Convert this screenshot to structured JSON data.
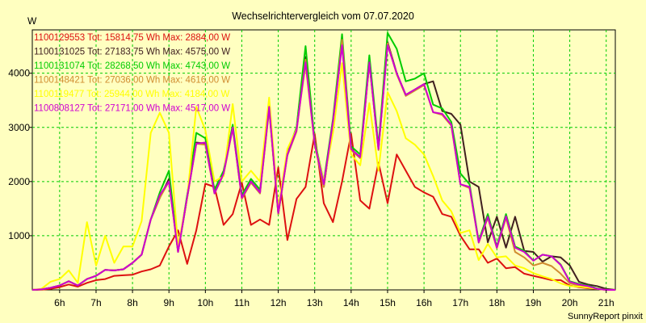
{
  "chart_data": {
    "type": "line",
    "title": "Wechselrichtervergleich vom 07.07.2020",
    "ylabel": "W",
    "footer": "SunnyReport pinxit",
    "x_ticks": [
      "6h",
      "7h",
      "8h",
      "9h",
      "10h",
      "11h",
      "12h",
      "13h",
      "14h",
      "15h",
      "16h",
      "17h",
      "18h",
      "19h",
      "20h",
      "21h"
    ],
    "y_ticks": [
      1000,
      2000,
      3000,
      4000
    ],
    "xlim": [
      5.25,
      21.25
    ],
    "ylim": [
      0,
      4800
    ],
    "grid": true,
    "legend_position": "top-left",
    "series": [
      {
        "name": "1100129553",
        "label": "1100129553 Tot: 15814,75 Wh Max: 2884,00 W",
        "color": "#dd1010",
        "x": [
          5.25,
          5.5,
          5.75,
          6.0,
          6.25,
          6.5,
          6.75,
          7.0,
          7.25,
          7.5,
          7.75,
          8.0,
          8.25,
          8.5,
          8.75,
          9.0,
          9.25,
          9.5,
          9.75,
          10.0,
          10.25,
          10.5,
          10.75,
          11.0,
          11.25,
          11.5,
          11.75,
          12.0,
          12.25,
          12.5,
          12.75,
          13.0,
          13.25,
          13.5,
          13.75,
          14.0,
          14.25,
          14.5,
          14.75,
          15.0,
          15.25,
          15.5,
          15.75,
          16.0,
          16.25,
          16.5,
          16.75,
          17.0,
          17.25,
          17.5,
          17.75,
          18.0,
          18.25,
          18.5,
          18.75,
          19.0,
          19.25,
          19.5,
          19.75,
          20.0,
          20.25,
          20.5,
          20.75,
          21.0,
          21.25
        ],
        "values": [
          0,
          5,
          20,
          50,
          100,
          60,
          130,
          180,
          200,
          260,
          270,
          280,
          340,
          380,
          450,
          800,
          1100,
          480,
          1100,
          1960,
          1900,
          1200,
          1400,
          1980,
          1200,
          1300,
          1200,
          2260,
          920,
          1680,
          1900,
          2880,
          1600,
          1250,
          2000,
          2884,
          1650,
          1500,
          2350,
          1600,
          2500,
          2200,
          1900,
          1800,
          1720,
          1400,
          1350,
          1000,
          750,
          750,
          500,
          580,
          400,
          420,
          300,
          260,
          220,
          180,
          180,
          80,
          50,
          30,
          20,
          5,
          0
        ]
      },
      {
        "name": "1100131025",
        "label": "1100131025 Tot: 27183,75 Wh Max: 4575,00 W",
        "color": "#402020",
        "x": [
          5.25,
          5.5,
          5.75,
          6.0,
          6.25,
          6.5,
          6.75,
          7.0,
          7.25,
          7.5,
          7.75,
          8.0,
          8.25,
          8.5,
          8.75,
          9.0,
          9.25,
          9.5,
          9.75,
          10.0,
          10.25,
          10.5,
          10.75,
          11.0,
          11.25,
          11.5,
          11.75,
          12.0,
          12.25,
          12.5,
          12.75,
          13.0,
          13.25,
          13.5,
          13.75,
          14.0,
          14.25,
          14.5,
          14.75,
          15.0,
          15.25,
          15.5,
          15.75,
          16.0,
          16.25,
          16.5,
          16.75,
          17.0,
          17.25,
          17.5,
          17.75,
          18.0,
          18.25,
          18.5,
          18.75,
          19.0,
          19.25,
          19.5,
          19.75,
          20.0,
          20.25,
          20.5,
          20.75,
          21.0,
          21.25
        ],
        "values": [
          0,
          10,
          40,
          80,
          160,
          80,
          200,
          260,
          370,
          360,
          380,
          500,
          650,
          1300,
          1700,
          2050,
          700,
          1700,
          2720,
          2700,
          1800,
          2150,
          3000,
          1700,
          2000,
          1800,
          3350,
          1400,
          2500,
          2950,
          4300,
          2700,
          1900,
          3100,
          4575,
          2600,
          2450,
          4200,
          2600,
          4575,
          4000,
          3600,
          3700,
          3800,
          3850,
          3300,
          3250,
          3050,
          2000,
          1900,
          880,
          1350,
          780,
          1350,
          720,
          700,
          520,
          620,
          600,
          450,
          150,
          100,
          70,
          20,
          0
        ]
      },
      {
        "name": "1100131074",
        "label": "1100131074 Tot: 28268,50 Wh Max: 4743,00 W",
        "color": "#00cc00",
        "x": [
          5.25,
          5.5,
          5.75,
          6.0,
          6.25,
          6.5,
          6.75,
          7.0,
          7.25,
          7.5,
          7.75,
          8.0,
          8.25,
          8.5,
          8.75,
          9.0,
          9.25,
          9.5,
          9.75,
          10.0,
          10.25,
          10.5,
          10.75,
          11.0,
          11.25,
          11.5,
          11.75,
          12.0,
          12.25,
          12.5,
          12.75,
          13.0,
          13.25,
          13.5,
          13.75,
          14.0,
          14.25,
          14.5,
          14.75,
          15.0,
          15.25,
          15.5,
          15.75,
          16.0,
          16.25,
          16.5,
          16.75,
          17.0,
          17.25,
          17.5,
          17.75,
          18.0,
          18.25,
          18.5,
          18.75,
          19.0,
          19.25,
          19.5,
          19.75,
          20.0,
          20.25,
          20.5,
          20.75,
          21.0,
          21.25
        ],
        "values": [
          0,
          10,
          40,
          80,
          160,
          80,
          200,
          260,
          370,
          360,
          380,
          500,
          650,
          1300,
          1800,
          2200,
          720,
          1750,
          2900,
          2800,
          1850,
          2200,
          3050,
          1750,
          2050,
          1850,
          3380,
          1450,
          2550,
          3000,
          4500,
          2750,
          2000,
          3150,
          4720,
          2650,
          2500,
          4330,
          2650,
          4743,
          4450,
          3850,
          3900,
          4000,
          3420,
          3350,
          3100,
          2150,
          1950,
          900,
          1400,
          800,
          1400,
          800,
          720,
          540,
          650,
          620,
          470,
          160,
          110,
          80,
          25,
          0,
          0
        ]
      },
      {
        "name": "1100148421",
        "label": "1100148421 Tot: 27036,00 Wh Max: 4616,00 W",
        "color": "#d08c30",
        "x": [
          5.25,
          5.5,
          5.75,
          6.0,
          6.25,
          6.5,
          6.75,
          7.0,
          7.25,
          7.5,
          7.75,
          8.0,
          8.25,
          8.5,
          8.75,
          9.0,
          9.25,
          9.5,
          9.75,
          10.0,
          10.25,
          10.5,
          10.75,
          11.0,
          11.25,
          11.5,
          11.75,
          12.0,
          12.25,
          12.5,
          12.75,
          13.0,
          13.25,
          13.5,
          13.75,
          14.0,
          14.25,
          14.5,
          14.75,
          15.0,
          15.25,
          15.5,
          15.75,
          16.0,
          16.25,
          16.5,
          16.75,
          17.0,
          17.25,
          17.5,
          17.75,
          18.0,
          18.25,
          18.5,
          18.75,
          19.0,
          19.25,
          19.5,
          19.75,
          20.0,
          20.25,
          20.5,
          20.75,
          21.0,
          21.25
        ],
        "values": [
          0,
          10,
          40,
          80,
          160,
          80,
          200,
          260,
          370,
          360,
          380,
          500,
          650,
          1300,
          1700,
          2000,
          700,
          1700,
          2700,
          2680,
          1780,
          2130,
          2980,
          1680,
          1980,
          1780,
          3330,
          1400,
          2480,
          2920,
          4250,
          2680,
          1900,
          3080,
          4616,
          2580,
          2430,
          4180,
          2580,
          4550,
          3980,
          3580,
          3680,
          3780,
          3280,
          3230,
          3030,
          1950,
          1880,
          870,
          1330,
          770,
          1330,
          700,
          600,
          450,
          500,
          440,
          300,
          120,
          80,
          60,
          20,
          0,
          0
        ]
      },
      {
        "name": "1100119477",
        "label": "1100119477 Tot: 25944,00 Wh Max: 4184,00 W",
        "color": "#ffff00",
        "x": [
          5.25,
          5.5,
          5.75,
          6.0,
          6.25,
          6.5,
          6.75,
          7.0,
          7.25,
          7.5,
          7.75,
          8.0,
          8.25,
          8.5,
          8.75,
          9.0,
          9.25,
          9.5,
          9.75,
          10.0,
          10.25,
          10.5,
          10.75,
          11.0,
          11.25,
          11.5,
          11.75,
          12.0,
          12.25,
          12.5,
          12.75,
          13.0,
          13.25,
          13.5,
          13.75,
          14.0,
          14.25,
          14.5,
          14.75,
          15.0,
          15.25,
          15.5,
          15.75,
          16.0,
          16.25,
          16.5,
          16.75,
          17.0,
          17.25,
          17.5,
          17.75,
          18.0,
          18.25,
          18.5,
          18.75,
          19.0,
          19.25,
          19.5,
          19.75,
          20.0,
          20.25,
          20.5,
          20.75,
          21.0,
          21.25
        ],
        "values": [
          0,
          20,
          150,
          200,
          360,
          130,
          1250,
          450,
          1000,
          500,
          800,
          800,
          1270,
          2900,
          3270,
          2900,
          800,
          1700,
          3380,
          2950,
          2000,
          2100,
          3430,
          2000,
          2200,
          2000,
          3550,
          1500,
          2600,
          2970,
          4150,
          2700,
          2000,
          2900,
          4184,
          2500,
          2300,
          3450,
          2200,
          3650,
          3300,
          2800,
          2680,
          2500,
          2100,
          1650,
          1450,
          1050,
          1100,
          550,
          850,
          600,
          620,
          450,
          400,
          310,
          250,
          200,
          120,
          70,
          60,
          40,
          20,
          0,
          0
        ]
      },
      {
        "name": "1100808127",
        "label": "1100808127 Tot: 27171,00 Wh Max: 4517,00 W",
        "color": "#d000d0",
        "x": [
          5.25,
          5.5,
          5.75,
          6.0,
          6.25,
          6.5,
          6.75,
          7.0,
          7.25,
          7.5,
          7.75,
          8.0,
          8.25,
          8.5,
          8.75,
          9.0,
          9.25,
          9.5,
          9.75,
          10.0,
          10.25,
          10.5,
          10.75,
          11.0,
          11.25,
          11.5,
          11.75,
          12.0,
          12.25,
          12.5,
          12.75,
          13.0,
          13.25,
          13.5,
          13.75,
          14.0,
          14.25,
          14.5,
          14.75,
          15.0,
          15.25,
          15.5,
          15.75,
          16.0,
          16.25,
          16.5,
          16.75,
          17.0,
          17.25,
          17.5,
          17.75,
          18.0,
          18.25,
          18.5,
          18.75,
          19.0,
          19.25,
          19.5,
          19.75,
          20.0,
          20.25,
          20.5,
          20.75,
          21.0,
          21.25
        ],
        "values": [
          0,
          10,
          40,
          80,
          160,
          80,
          200,
          260,
          370,
          360,
          380,
          500,
          650,
          1300,
          1750,
          2000,
          700,
          1720,
          2700,
          2720,
          1780,
          2150,
          3000,
          1700,
          2000,
          1800,
          3380,
          1420,
          2500,
          2950,
          4200,
          2700,
          1950,
          3100,
          4517,
          2600,
          2450,
          4200,
          2600,
          4517,
          4000,
          3600,
          3700,
          3800,
          3280,
          3250,
          3050,
          1950,
          1900,
          880,
          1350,
          780,
          1360,
          780,
          700,
          540,
          650,
          620,
          460,
          150,
          100,
          70,
          20,
          0,
          0
        ]
      }
    ]
  }
}
